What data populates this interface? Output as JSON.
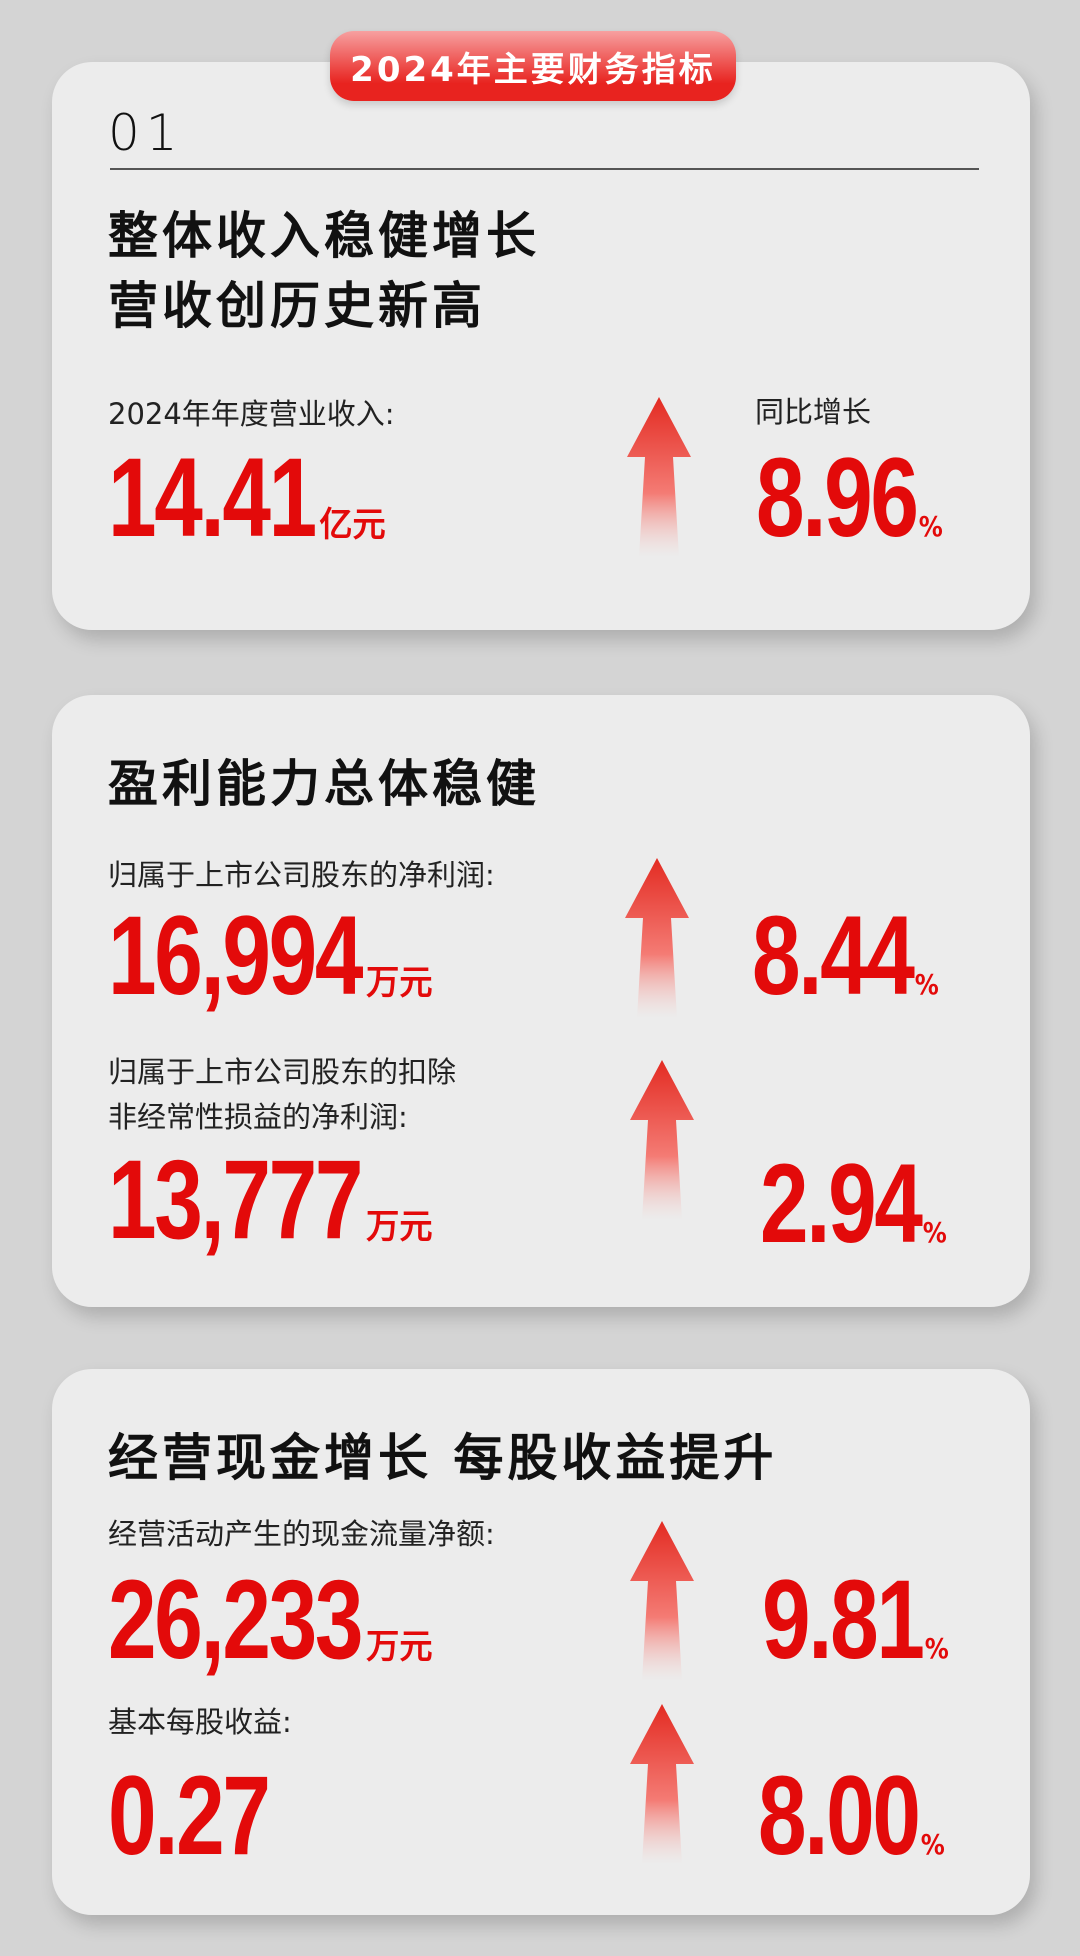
{
  "header": {
    "title": "2024年主要财务指标"
  },
  "colors": {
    "accent": "#e30a0a",
    "card_bg": "#ececec",
    "page_bg": "#d4d4d4"
  },
  "card1": {
    "index": "01",
    "title_line1": "整体收入稳健增长",
    "title_line2": "营收创历史新高",
    "metric": {
      "label": "2024年年度营业收入:",
      "value": "14.41",
      "unit": "亿元",
      "change_label": "同比增长",
      "change": "8.96",
      "change_unit": "%",
      "icon": "arrow-up-icon"
    }
  },
  "card2": {
    "title": "盈利能力总体稳健",
    "metrics": [
      {
        "label": "归属于上市公司股东的净利润:",
        "value": "16,994",
        "unit": "万元",
        "change": "8.44",
        "change_unit": "%",
        "icon": "arrow-up-icon"
      },
      {
        "label_line1": "归属于上市公司股东的扣除",
        "label_line2": "非经常性损益的净利润:",
        "value": "13,777",
        "unit": "万元",
        "change": "2.94",
        "change_unit": "%",
        "icon": "arrow-up-icon"
      }
    ]
  },
  "card3": {
    "title": "经营现金增长 每股收益提升",
    "metrics": [
      {
        "label": "经营活动产生的现金流量净额:",
        "value": "26,233",
        "unit": "万元",
        "change": "9.81",
        "change_unit": "%",
        "icon": "arrow-up-icon"
      },
      {
        "label": "基本每股收益:",
        "value": "0.27",
        "change": "8.00",
        "change_unit": "%",
        "icon": "arrow-up-icon"
      }
    ]
  }
}
